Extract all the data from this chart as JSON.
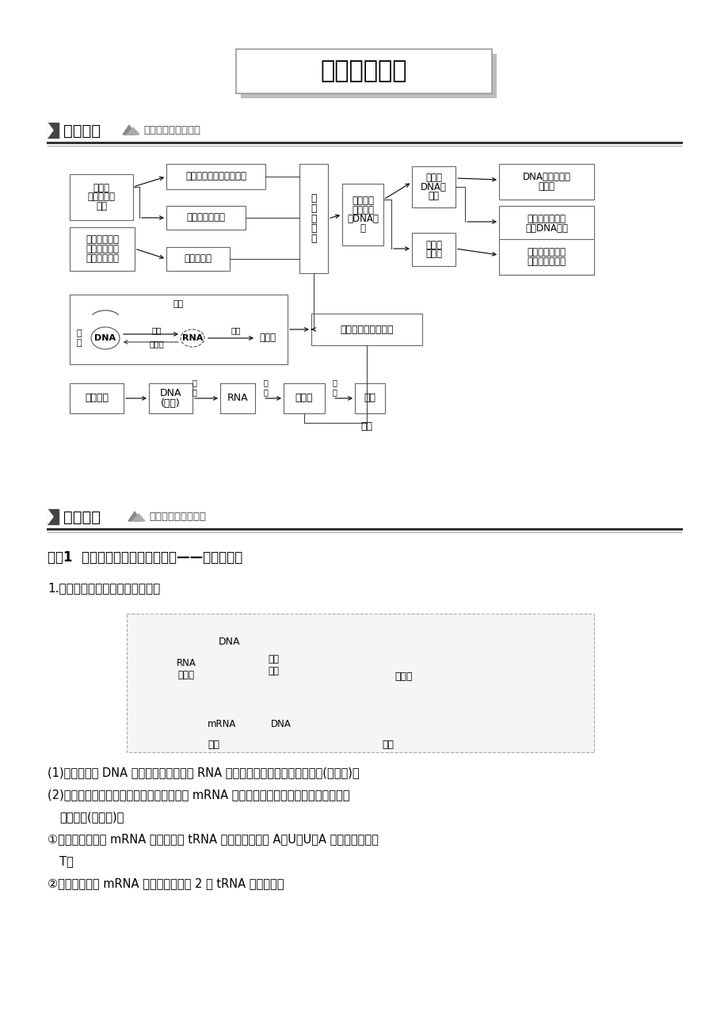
{
  "title": "章末整合提升",
  "section1_title": "网络构建",
  "section1_subtitle": "系统盘点，提炼主干",
  "section2_title": "疑难突破",
  "section2_subtitle": "突破难点，提升能力",
  "breakthrough_title": "突破1  基因指导蛋白质合成的过程——转录和翻译",
  "sub_title1": "1.转录、翻译过程中有关图形解读",
  "body_lines": [
    "(1)转录：指以 DNA 的一条链为模板合成 RNA 的过程，其特点是边解旋边转录(如图一)。",
    "(2)翻译：游离在细胞质中的各种氨基酸，以 mRNA 为模板合成具有一定氨基酸序列的蛋白",
    "质的过程(如图二)。",
    "①碱基配对双方是 mRNA 上密码子和 tRNA 上反密码子，故 A－U、U－A 配对，不能出现",
    "T。",
    "②一个核糖体与 mRNA 的结合部位形成 2 个 tRNA 结合位点。"
  ],
  "bg_color": "#ffffff"
}
